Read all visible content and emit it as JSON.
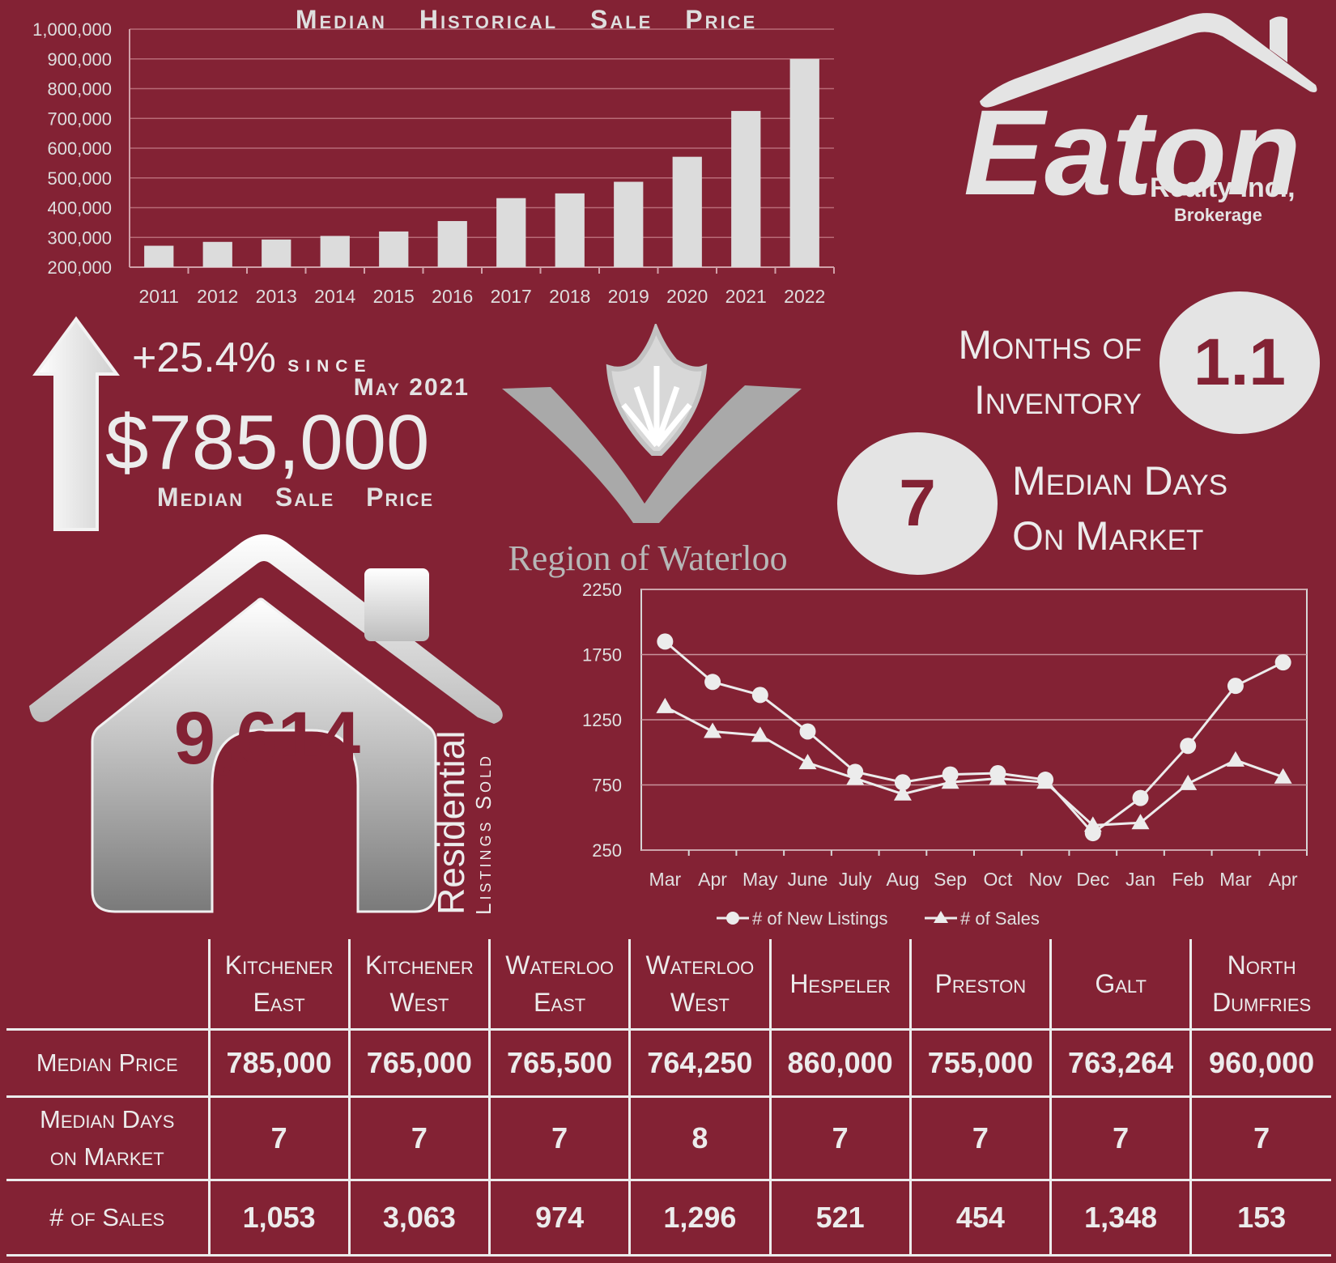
{
  "bar_chart_title": "Median Historical Sale Price",
  "price_change": {
    "percent": "+25.4%",
    "since_label": "since",
    "since_date": "May 2021",
    "median_sale_price": "$785,000",
    "label": "Median Sale Price"
  },
  "brand": {
    "name": "Eaton",
    "subname": "Realty Inc.,",
    "tagline": "Brokerage"
  },
  "region_name": "Region of Waterloo",
  "months_of_inventory": {
    "label_line1": "Months of",
    "label_line2": "Inventory",
    "value": "1.1"
  },
  "median_days_on_market": {
    "value": "7",
    "label_line1": "Median Days",
    "label_line2": "On Market"
  },
  "listings_sold": {
    "value": "9,614",
    "label_line1": "Residential",
    "label_line2": "Listings Sold"
  },
  "colors": {
    "background": "#832234",
    "foreground": "#e3e3e3"
  },
  "chart_data": [
    {
      "type": "bar",
      "title": "Median Historical Sale Price",
      "categories": [
        "2011",
        "2012",
        "2013",
        "2014",
        "2015",
        "2016",
        "2017",
        "2018",
        "2019",
        "2020",
        "2021",
        "2022"
      ],
      "values": [
        272000,
        285000,
        293000,
        305000,
        320000,
        355000,
        432000,
        448000,
        487000,
        571000,
        725000,
        900000
      ],
      "ylim": [
        200000,
        1000000
      ],
      "yticks": [
        200000,
        300000,
        400000,
        500000,
        600000,
        700000,
        800000,
        900000,
        1000000
      ],
      "ytick_labels": [
        "200,000",
        "300,000",
        "400,000",
        "500,000",
        "600,000",
        "700,000",
        "800,000",
        "900,000",
        "1,000,000"
      ],
      "grid": true,
      "bar_color": "#dcdcdc"
    },
    {
      "type": "line",
      "categories": [
        "Mar",
        "Apr",
        "May",
        "June",
        "July",
        "Aug",
        "Sep",
        "Oct",
        "Nov",
        "Dec",
        "Jan",
        "Feb",
        "Mar",
        "Apr"
      ],
      "series": [
        {
          "name": "# of New Listings",
          "marker": "circle",
          "values": [
            1850,
            1540,
            1440,
            1160,
            850,
            770,
            830,
            840,
            790,
            380,
            650,
            1050,
            1510,
            1690
          ]
        },
        {
          "name": "# of Sales",
          "marker": "triangle",
          "values": [
            1350,
            1160,
            1130,
            920,
            800,
            680,
            770,
            800,
            770,
            440,
            460,
            760,
            940,
            810
          ]
        }
      ],
      "ylim": [
        250,
        2250
      ],
      "yticks": [
        250,
        750,
        1250,
        1750,
        2250
      ],
      "grid": true,
      "legend_position": "bottom"
    }
  ],
  "table": {
    "columns": [
      {
        "line1": "Kitchener",
        "line2": "East"
      },
      {
        "line1": "Kitchener",
        "line2": "West"
      },
      {
        "line1": "Waterloo",
        "line2": "East"
      },
      {
        "line1": "Waterloo",
        "line2": "West"
      },
      {
        "line1": "Hespeler",
        "line2": ""
      },
      {
        "line1": "Preston",
        "line2": ""
      },
      {
        "line1": "Galt",
        "line2": ""
      },
      {
        "line1": "North",
        "line2": "Dumfries"
      }
    ],
    "rows": [
      {
        "label_line1": "Median Price",
        "label_line2": "",
        "values": [
          "785,000",
          "765,000",
          "765,500",
          "764,250",
          "860,000",
          "755,000",
          "763,264",
          "960,000"
        ]
      },
      {
        "label_line1": "Median Days",
        "label_line2": "on Market",
        "values": [
          "7",
          "7",
          "7",
          "8",
          "7",
          "7",
          "7",
          "7"
        ]
      },
      {
        "label_line1": "# of Sales",
        "label_line2": "",
        "values": [
          "1,053",
          "3,063",
          "974",
          "1,296",
          "521",
          "454",
          "1,348",
          "153"
        ]
      }
    ]
  }
}
